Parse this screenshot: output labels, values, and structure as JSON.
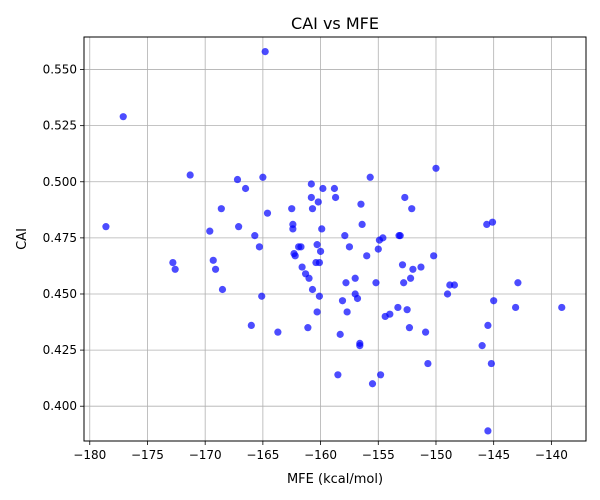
{
  "chart_data": {
    "type": "scatter",
    "title": "CAI vs MFE",
    "xlabel": "MFE (kcal/mol)",
    "ylabel": "CAI",
    "xlim": [
      -180.5,
      -137.0
    ],
    "ylim": [
      0.3845,
      0.5645
    ],
    "xticks": [
      -180,
      -175,
      -170,
      -165,
      -160,
      -155,
      -150,
      -145,
      -140
    ],
    "xtick_labels": [
      "−180",
      "−175",
      "−170",
      "−165",
      "−160",
      "−155",
      "−150",
      "−145",
      "−140"
    ],
    "yticks": [
      0.4,
      0.425,
      0.45,
      0.475,
      0.5,
      0.525,
      0.55
    ],
    "ytick_labels": [
      "0.400",
      "0.425",
      "0.450",
      "0.475",
      "0.500",
      "0.525",
      "0.550"
    ],
    "grid": true,
    "marker_color": "#0000ff",
    "marker_opacity": 0.7,
    "series": [
      {
        "points": [
          [
            -178.6,
            0.48
          ],
          [
            -177.1,
            0.529
          ],
          [
            -172.8,
            0.464
          ],
          [
            -172.6,
            0.461
          ],
          [
            -171.3,
            0.503
          ],
          [
            -169.6,
            0.478
          ],
          [
            -169.3,
            0.465
          ],
          [
            -169.1,
            0.461
          ],
          [
            -168.6,
            0.488
          ],
          [
            -168.5,
            0.452
          ],
          [
            -167.2,
            0.501
          ],
          [
            -167.1,
            0.48
          ],
          [
            -166.5,
            0.497
          ],
          [
            -166.0,
            0.436
          ],
          [
            -165.7,
            0.476
          ],
          [
            -165.3,
            0.471
          ],
          [
            -165.1,
            0.449
          ],
          [
            -165.0,
            0.502
          ],
          [
            -164.8,
            0.558
          ],
          [
            -164.6,
            0.486
          ],
          [
            -163.7,
            0.433
          ],
          [
            -162.5,
            0.488
          ],
          [
            -162.4,
            0.481
          ],
          [
            -162.4,
            0.479
          ],
          [
            -162.3,
            0.468
          ],
          [
            -162.2,
            0.467
          ],
          [
            -161.9,
            0.471
          ],
          [
            -161.7,
            0.471
          ],
          [
            -161.6,
            0.462
          ],
          [
            -161.3,
            0.459
          ],
          [
            -161.1,
            0.435
          ],
          [
            -161.0,
            0.457
          ],
          [
            -160.8,
            0.499
          ],
          [
            -160.8,
            0.493
          ],
          [
            -160.7,
            0.488
          ],
          [
            -160.7,
            0.452
          ],
          [
            -160.4,
            0.464
          ],
          [
            -160.3,
            0.442
          ],
          [
            -160.3,
            0.472
          ],
          [
            -160.2,
            0.491
          ],
          [
            -160.1,
            0.464
          ],
          [
            -160.1,
            0.449
          ],
          [
            -160.0,
            0.469
          ],
          [
            -159.9,
            0.479
          ],
          [
            -159.8,
            0.497
          ],
          [
            -158.8,
            0.497
          ],
          [
            -158.7,
            0.493
          ],
          [
            -158.5,
            0.414
          ],
          [
            -158.3,
            0.432
          ],
          [
            -158.1,
            0.447
          ],
          [
            -157.9,
            0.476
          ],
          [
            -157.8,
            0.455
          ],
          [
            -157.7,
            0.442
          ],
          [
            -157.5,
            0.471
          ],
          [
            -157.0,
            0.45
          ],
          [
            -157.0,
            0.457
          ],
          [
            -156.8,
            0.448
          ],
          [
            -156.6,
            0.428
          ],
          [
            -156.6,
            0.427
          ],
          [
            -156.5,
            0.49
          ],
          [
            -156.4,
            0.481
          ],
          [
            -156.0,
            0.467
          ],
          [
            -155.7,
            0.502
          ],
          [
            -155.5,
            0.41
          ],
          [
            -155.2,
            0.455
          ],
          [
            -155.0,
            0.47
          ],
          [
            -154.9,
            0.474
          ],
          [
            -154.8,
            0.414
          ],
          [
            -154.6,
            0.475
          ],
          [
            -154.4,
            0.44
          ],
          [
            -154.0,
            0.441
          ],
          [
            -153.3,
            0.444
          ],
          [
            -153.2,
            0.476
          ],
          [
            -153.1,
            0.476
          ],
          [
            -152.9,
            0.463
          ],
          [
            -152.8,
            0.455
          ],
          [
            -152.7,
            0.493
          ],
          [
            -152.5,
            0.443
          ],
          [
            -152.3,
            0.435
          ],
          [
            -152.2,
            0.457
          ],
          [
            -152.1,
            0.488
          ],
          [
            -152.0,
            0.461
          ],
          [
            -151.3,
            0.462
          ],
          [
            -150.9,
            0.433
          ],
          [
            -150.7,
            0.419
          ],
          [
            -150.2,
            0.467
          ],
          [
            -150.0,
            0.506
          ],
          [
            -149.0,
            0.45
          ],
          [
            -148.8,
            0.454
          ],
          [
            -148.4,
            0.454
          ],
          [
            -146.0,
            0.427
          ],
          [
            -145.6,
            0.481
          ],
          [
            -145.5,
            0.436
          ],
          [
            -145.5,
            0.389
          ],
          [
            -145.2,
            0.419
          ],
          [
            -145.1,
            0.482
          ],
          [
            -145.0,
            0.447
          ],
          [
            -143.1,
            0.444
          ],
          [
            -142.9,
            0.455
          ],
          [
            -139.1,
            0.444
          ]
        ]
      }
    ]
  }
}
